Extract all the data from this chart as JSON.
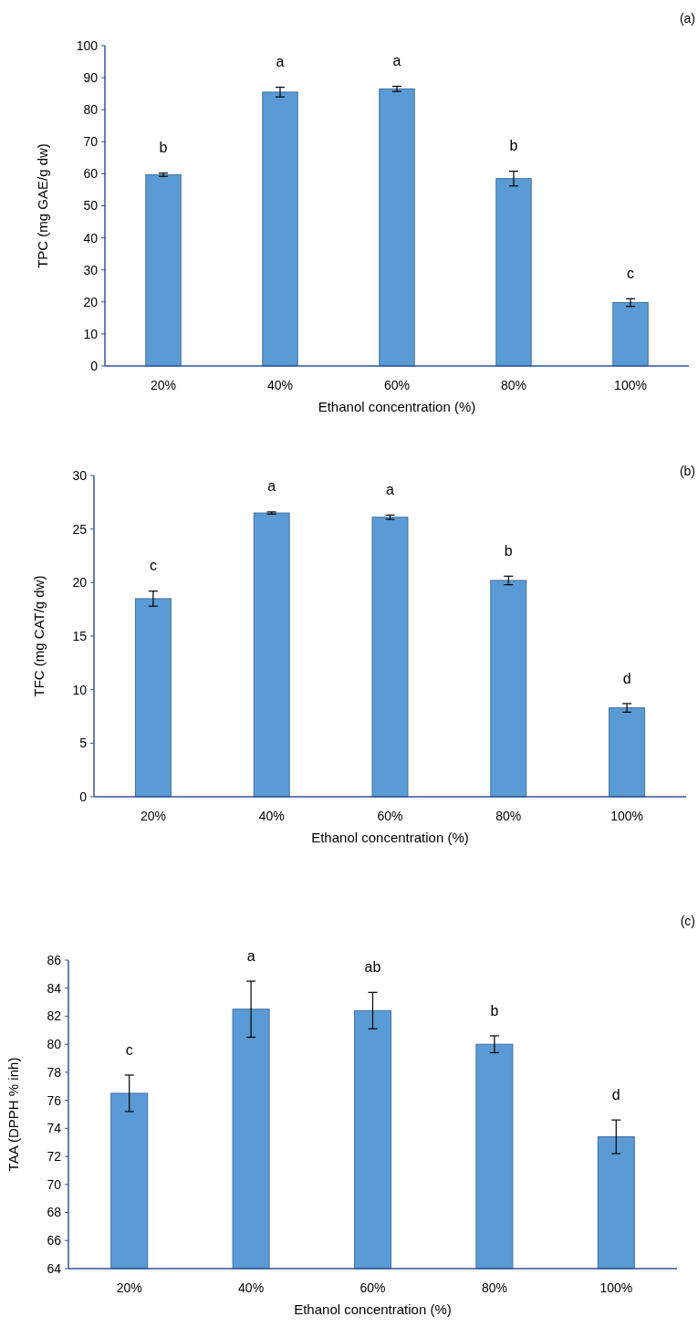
{
  "chart_data": [
    {
      "type": "bar",
      "title": "(a)",
      "xlabel": "Ethanol concentration (%)",
      "ylabel": "TPC (mg GAE/g  dw)",
      "categories": [
        "20%",
        "40%",
        "60%",
        "80%",
        "100%"
      ],
      "color": "#5b9bd5",
      "values": [
        59.7,
        85.5,
        86.5,
        58.5,
        19.8
      ],
      "errors": [
        0.5,
        1.5,
        0.8,
        2.3,
        1.2
      ],
      "ylim": [
        0,
        100
      ],
      "yticks": [
        0,
        10,
        20,
        30,
        40,
        50,
        60,
        70,
        80,
        90,
        100
      ],
      "annotations": [
        "b",
        "a",
        "a",
        "b",
        "c"
      ]
    },
    {
      "type": "bar",
      "title": "(b)",
      "xlabel": "Ethanol concentration (%)",
      "ylabel": "TFC (mg CAT/g dw)",
      "categories": [
        "20%",
        "40%",
        "60%",
        "80%",
        "100%"
      ],
      "color": "#5b9bd5",
      "values": [
        18.5,
        26.5,
        26.1,
        20.2,
        8.3
      ],
      "errors": [
        0.7,
        0.1,
        0.2,
        0.4,
        0.4
      ],
      "ylim": [
        0,
        30
      ],
      "yticks": [
        0,
        5,
        10,
        15,
        20,
        25,
        30
      ],
      "annotations": [
        "c",
        "a",
        "a",
        "b",
        "d"
      ]
    },
    {
      "type": "bar",
      "title": "(c)",
      "xlabel": "Ethanol concentration (%)",
      "ylabel": "TAA (DPPH % inh)",
      "categories": [
        "20%",
        "40%",
        "60%",
        "80%",
        "100%"
      ],
      "color": "#5b9bd5",
      "values": [
        76.5,
        82.5,
        82.4,
        80,
        73.4
      ],
      "errors": [
        1.3,
        2.0,
        1.3,
        0.6,
        1.2
      ],
      "ylim": [
        64,
        86
      ],
      "yticks": [
        64,
        66,
        68,
        70,
        72,
        74,
        76,
        78,
        80,
        82,
        84,
        86
      ],
      "annotations": [
        "c",
        "a",
        "ab",
        "b",
        "d"
      ]
    }
  ]
}
